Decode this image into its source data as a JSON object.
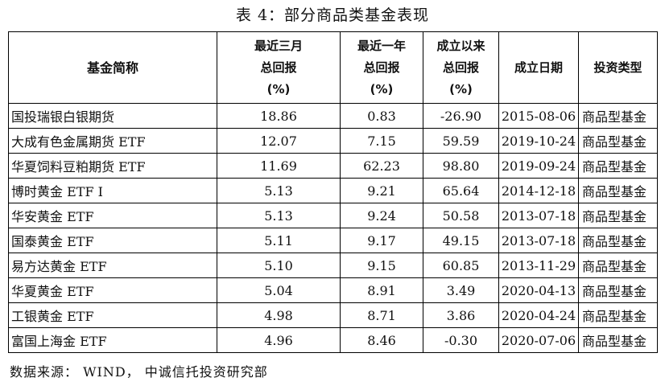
{
  "title": "表 4：部分商品类基金表现",
  "headers": {
    "name": "基金简称",
    "ret3m": [
      "最近三月",
      "总回报",
      "(%)"
    ],
    "ret1y": [
      "最近一年",
      "总回报",
      "(%)"
    ],
    "retall": [
      "成立以来",
      "总回报",
      "(%)"
    ],
    "date": "成立日期",
    "type": "投资类型"
  },
  "rows": [
    {
      "name": "国投瑞银白银期货",
      "ret3m": "18.86",
      "ret1y": "0.83",
      "retall": "-26.90",
      "date": "2015-08-06",
      "type": "商品型基金"
    },
    {
      "name": "大成有色金属期货 ETF",
      "ret3m": "12.07",
      "ret1y": "7.15",
      "retall": "59.59",
      "date": "2019-10-24",
      "type": "商品型基金"
    },
    {
      "name": "华夏饲料豆粕期货 ETF",
      "ret3m": "11.69",
      "ret1y": "62.23",
      "retall": "98.80",
      "date": "2019-09-24",
      "type": "商品型基金"
    },
    {
      "name": "博时黄金 ETF I",
      "ret3m": "5.13",
      "ret1y": "9.21",
      "retall": "65.64",
      "date": "2014-12-18",
      "type": "商品型基金"
    },
    {
      "name": "华安黄金 ETF",
      "ret3m": "5.13",
      "ret1y": "9.24",
      "retall": "50.58",
      "date": "2013-07-18",
      "type": "商品型基金"
    },
    {
      "name": "国泰黄金 ETF",
      "ret3m": "5.11",
      "ret1y": "9.17",
      "retall": "49.15",
      "date": "2013-07-18",
      "type": "商品型基金"
    },
    {
      "name": "易方达黄金 ETF",
      "ret3m": "5.10",
      "ret1y": "9.15",
      "retall": "60.85",
      "date": "2013-11-29",
      "type": "商品型基金"
    },
    {
      "name": "华夏黄金 ETF",
      "ret3m": "5.04",
      "ret1y": "8.91",
      "retall": "3.49",
      "date": "2020-04-13",
      "type": "商品型基金"
    },
    {
      "name": "工银黄金 ETF",
      "ret3m": "4.98",
      "ret1y": "8.71",
      "retall": "3.86",
      "date": "2020-04-24",
      "type": "商品型基金"
    },
    {
      "name": "富国上海金 ETF",
      "ret3m": "4.96",
      "ret1y": "8.46",
      "retall": "-0.30",
      "date": "2020-07-06",
      "type": "商品型基金"
    }
  ],
  "source": "数据来源： WIND， 中诚信托投资研究部"
}
